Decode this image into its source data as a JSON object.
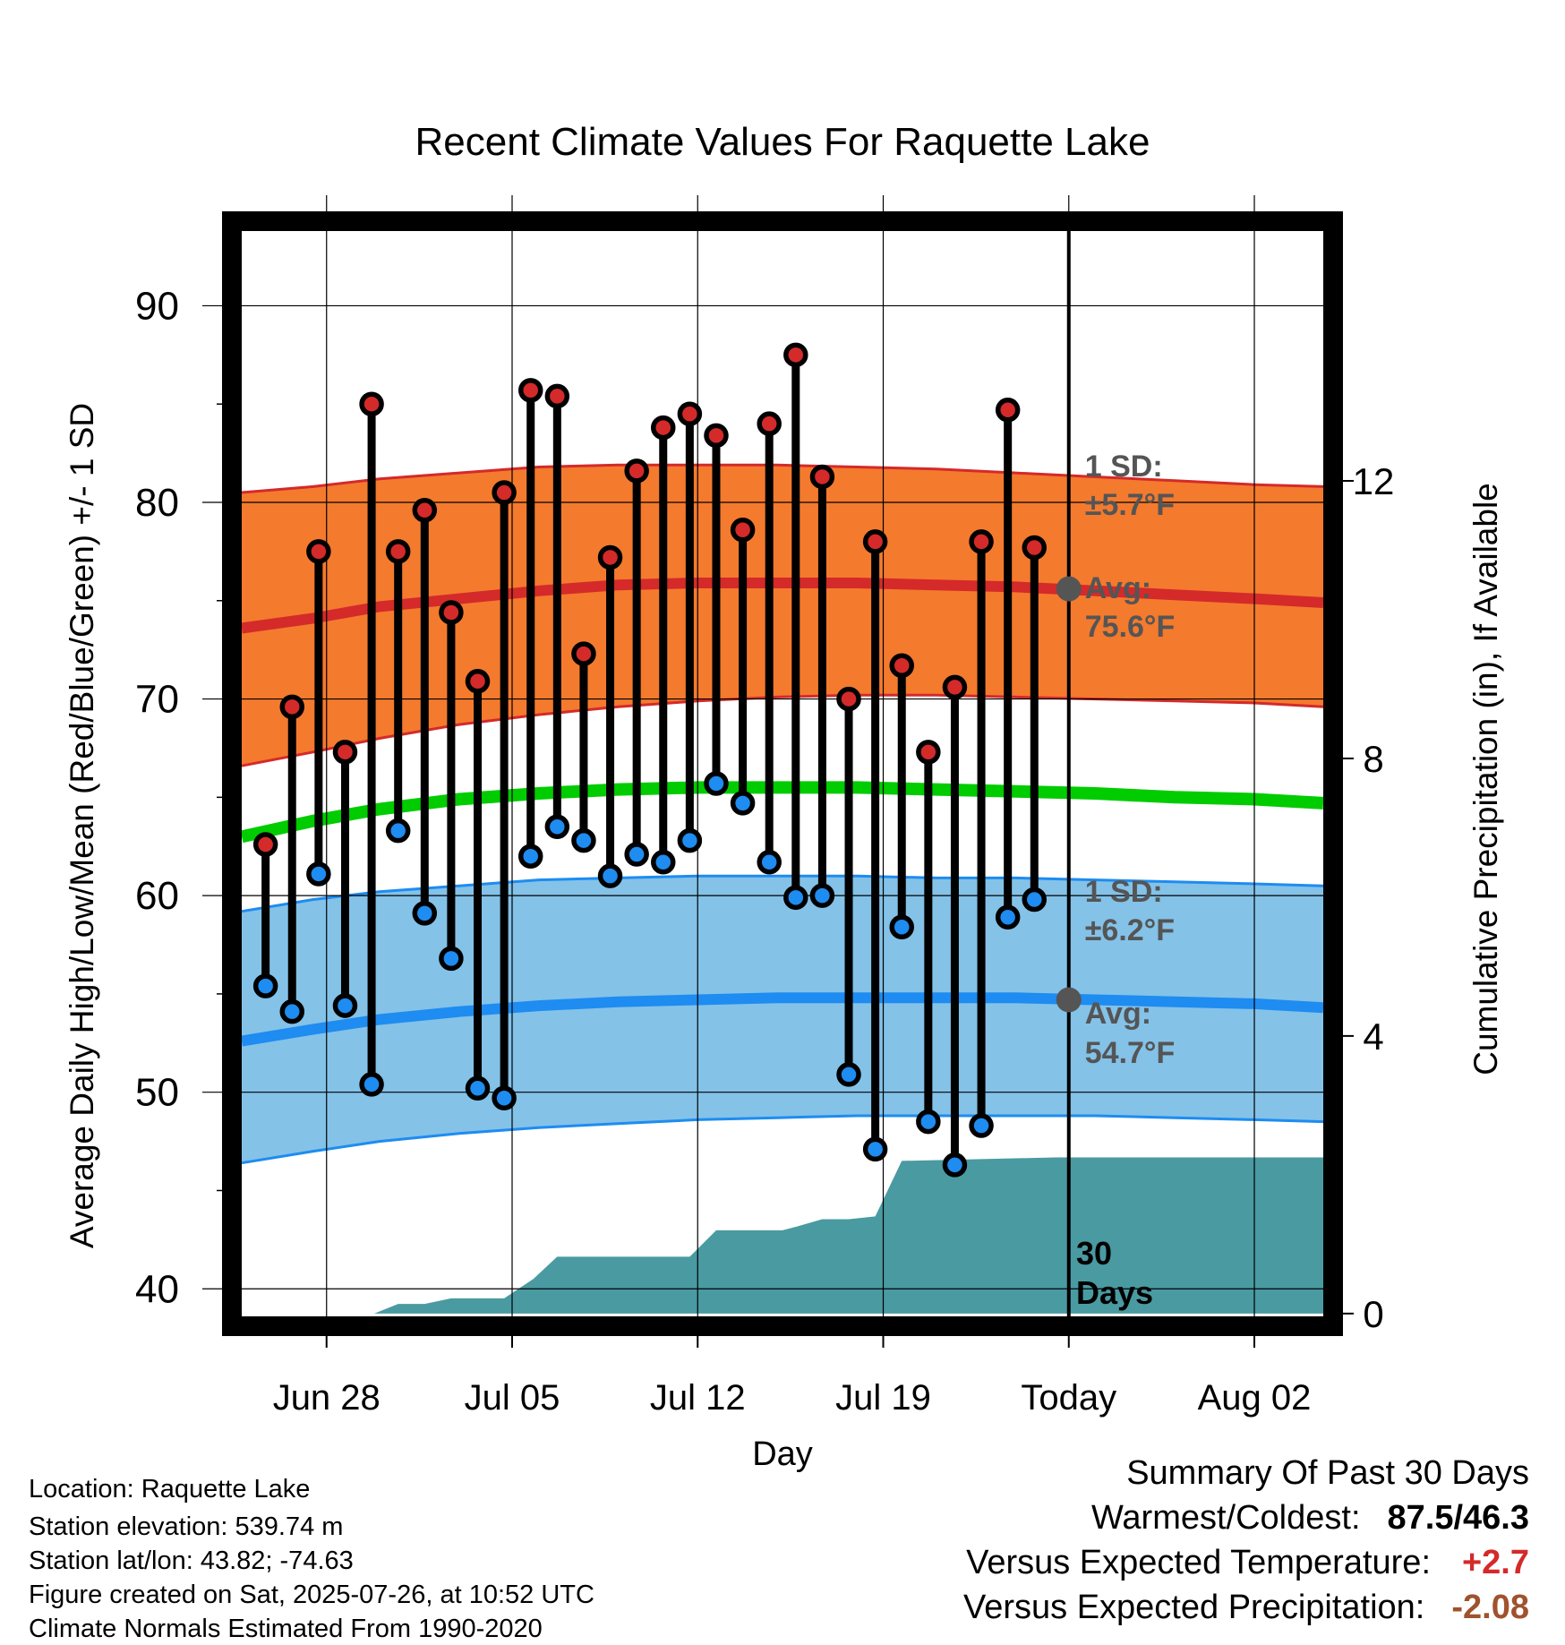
{
  "chart_data": {
    "type": "line",
    "title": "Recent Climate Values For Raquette Lake",
    "xlabel": "Day",
    "ylabel_left": "Average Daily High/Low/Mean (Red/Blue/Green) +/- 1 SD",
    "ylabel_right": "Cumulative Precipitation (in), If Available",
    "x_ticks": [
      {
        "day": 3,
        "label": "Jun 28"
      },
      {
        "day": 10,
        "label": "Jul 05"
      },
      {
        "day": 17,
        "label": "Jul 12"
      },
      {
        "day": 24,
        "label": "Jul 19"
      },
      {
        "day": 31,
        "label": "Today"
      },
      {
        "day": 38,
        "label": "Aug 02"
      }
    ],
    "x_range_days": [
      -0.2,
      40.6
    ],
    "ylim_left": [
      38.6,
      93.8
    ],
    "yticks_left": [
      40,
      50,
      60,
      70,
      80,
      90
    ],
    "ylim_right": [
      -0.04,
      15.6
    ],
    "yticks_right": [
      0,
      4,
      8,
      12
    ],
    "today_day": 31,
    "observations": [
      {
        "day": 0.7,
        "high": 62.6,
        "low": 55.4
      },
      {
        "day": 1.7,
        "high": 69.6,
        "low": 54.1
      },
      {
        "day": 2.7,
        "high": 77.5,
        "low": 61.1
      },
      {
        "day": 3.7,
        "high": 67.3,
        "low": 54.4
      },
      {
        "day": 4.7,
        "high": 85.0,
        "low": 50.4
      },
      {
        "day": 5.7,
        "high": 77.5,
        "low": 63.3
      },
      {
        "day": 6.7,
        "high": 79.6,
        "low": 59.1
      },
      {
        "day": 7.7,
        "high": 74.4,
        "low": 56.8
      },
      {
        "day": 8.7,
        "high": 70.9,
        "low": 50.2
      },
      {
        "day": 9.7,
        "high": 80.5,
        "low": 49.7
      },
      {
        "day": 10.7,
        "high": 85.7,
        "low": 62.0
      },
      {
        "day": 11.7,
        "high": 85.4,
        "low": 63.5
      },
      {
        "day": 12.7,
        "high": 72.3,
        "low": 62.8
      },
      {
        "day": 13.7,
        "high": 77.2,
        "low": 61.0
      },
      {
        "day": 14.7,
        "high": 81.6,
        "low": 62.1
      },
      {
        "day": 15.7,
        "high": 83.8,
        "low": 61.7
      },
      {
        "day": 16.7,
        "high": 84.5,
        "low": 62.8
      },
      {
        "day": 17.7,
        "high": 83.4,
        "low": 65.7
      },
      {
        "day": 18.7,
        "high": 78.6,
        "low": 64.7
      },
      {
        "day": 19.7,
        "high": 84.0,
        "low": 61.7
      },
      {
        "day": 20.7,
        "high": 87.5,
        "low": 59.9
      },
      {
        "day": 21.7,
        "high": 81.3,
        "low": 60.0
      },
      {
        "day": 22.7,
        "high": 70.0,
        "low": 50.9
      },
      {
        "day": 23.7,
        "high": 78.0,
        "low": 47.1
      },
      {
        "day": 24.7,
        "high": 71.7,
        "low": 58.4
      },
      {
        "day": 25.7,
        "high": 67.3,
        "low": 48.5
      },
      {
        "day": 26.7,
        "high": 70.6,
        "low": 46.3
      },
      {
        "day": 27.7,
        "high": 78.0,
        "low": 48.3
      },
      {
        "day": 28.7,
        "high": 84.7,
        "low": 58.9
      },
      {
        "day": 29.7,
        "high": 77.7,
        "low": 59.8
      }
    ],
    "normals": {
      "days": [
        -0.2,
        2.5,
        5,
        8,
        11,
        14,
        17,
        20,
        23,
        26,
        29,
        32,
        35,
        38,
        40.6
      ],
      "high_avg": [
        73.6,
        74.1,
        74.7,
        75.1,
        75.5,
        75.8,
        75.9,
        75.9,
        75.9,
        75.8,
        75.7,
        75.5,
        75.3,
        75.1,
        74.9
      ],
      "high_upper": [
        80.5,
        80.8,
        81.2,
        81.5,
        81.8,
        81.9,
        81.9,
        81.9,
        81.8,
        81.7,
        81.5,
        81.3,
        81.1,
        80.9,
        80.8
      ],
      "high_lower": [
        66.6,
        67.3,
        68.0,
        68.7,
        69.2,
        69.6,
        69.9,
        70.1,
        70.2,
        70.2,
        70.1,
        70.0,
        69.9,
        69.8,
        69.6
      ],
      "mean": [
        63.0,
        63.8,
        64.4,
        64.9,
        65.2,
        65.4,
        65.5,
        65.5,
        65.5,
        65.4,
        65.3,
        65.2,
        65.0,
        64.9,
        64.7
      ],
      "low_avg": [
        52.6,
        53.2,
        53.7,
        54.1,
        54.4,
        54.6,
        54.7,
        54.8,
        54.8,
        54.8,
        54.8,
        54.7,
        54.6,
        54.5,
        54.3
      ],
      "low_upper": [
        59.2,
        59.8,
        60.2,
        60.5,
        60.8,
        60.9,
        61.0,
        61.0,
        61.0,
        60.9,
        60.9,
        60.8,
        60.7,
        60.6,
        60.5
      ],
      "low_lower": [
        46.4,
        47.0,
        47.5,
        47.9,
        48.2,
        48.4,
        48.6,
        48.7,
        48.8,
        48.8,
        48.8,
        48.8,
        48.7,
        48.6,
        48.5
      ]
    },
    "precip_cumulative": {
      "days": [
        -0.2,
        4.8,
        5.7,
        6.7,
        7.7,
        9.7,
        10.8,
        11.7,
        14.7,
        16.7,
        17.7,
        20.2,
        20.7,
        21.7,
        22.7,
        23.7,
        24.7,
        30.5,
        40.6
      ],
      "values": [
        0,
        0,
        0.14,
        0.14,
        0.22,
        0.22,
        0.5,
        0.82,
        0.82,
        0.82,
        1.2,
        1.2,
        1.25,
        1.36,
        1.36,
        1.4,
        2.2,
        2.25,
        2.25
      ]
    },
    "annotations": {
      "high_sd": "1 SD:",
      "high_sd_value": "±5.7°F",
      "high_avg_label": "Avg:",
      "high_avg_value": "75.6°F",
      "high_today": 75.6,
      "low_sd": "1 SD:",
      "low_sd_value": "±6.2°F",
      "low_avg_label": "Avg:",
      "low_avg_value": "54.7°F",
      "low_today": 54.7,
      "precip_label_1": "30",
      "precip_label_2": "Days"
    },
    "colors": {
      "high_band": "#f47a2e",
      "high_line": "#d42a2a",
      "low_band": "#84c2e8",
      "low_line": "#1e8cf0",
      "mean_line": "#00cc00",
      "precip": "#4a9aa2",
      "high_marker": "#d42a2a",
      "low_marker": "#1e8cf0",
      "annotation": "#555555"
    }
  },
  "info": {
    "location": "Location: Raquette Lake",
    "elevation": "Station elevation: 539.74 m",
    "latlon": "Station lat/lon: 43.82; -74.63",
    "created": "Figure created on Sat, 2025-07-26, at 10:52 UTC",
    "normals": "Climate Normals Estimated From 1990-2020"
  },
  "summary": {
    "heading": "Summary Of Past 30 Days",
    "warm_cold_label": "Warmest/Coldest:",
    "warm_cold_value": "87.5/46.3",
    "temp_label": "Versus Expected Temperature:",
    "temp_value": "+2.7",
    "temp_color": "#d42a2a",
    "precip_label": "Versus Expected Precipitation:",
    "precip_value": "-2.08",
    "precip_color": "#a0522d"
  }
}
